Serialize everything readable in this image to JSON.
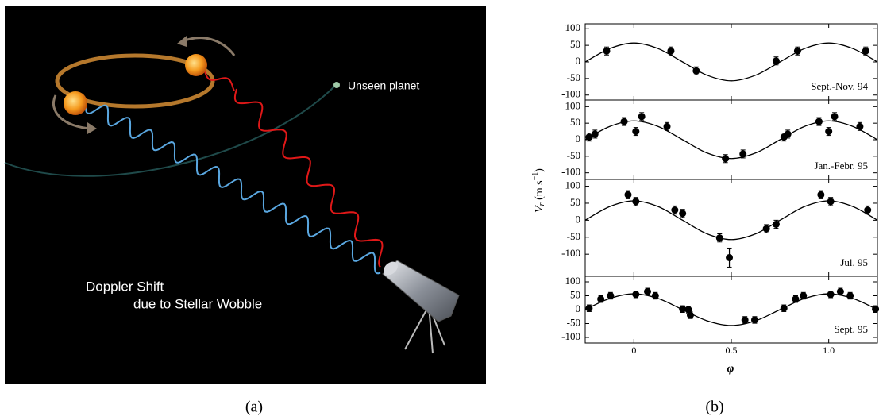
{
  "illustration": {
    "planet_label": "Unseen planet",
    "caption_line1": "Doppler Shift",
    "caption_line2": "due to Stellar Wobble"
  },
  "panel_labels": [
    "(a)",
    "(b)"
  ],
  "figure_b": {
    "y_label_parts": [
      "V",
      "r",
      " (m s",
      "−1",
      ")"
    ],
    "x_label": "φ"
  },
  "chart_data": [
    {
      "type": "scatter",
      "title": "Sept.-Nov. 94",
      "x": [
        -0.14,
        0.19,
        0.32,
        0.73,
        0.84,
        1.19
      ],
      "values": [
        33,
        33,
        -27,
        3,
        33,
        33
      ],
      "errors": [
        12,
        12,
        12,
        12,
        12,
        12
      ],
      "fit": {
        "x": [
          -0.25,
          -0.125,
          0,
          0.125,
          0.25,
          0.375,
          0.5,
          0.625,
          0.75,
          0.875,
          1,
          1.125,
          1.25
        ],
        "values": [
          0,
          40,
          57,
          40,
          0,
          -40,
          -57,
          -40,
          0,
          40,
          57,
          40,
          0
        ]
      },
      "xlim": [
        -0.25,
        1.25
      ],
      "xticks": [
        0,
        0.5,
        {
          "value": 1,
          "label": "1.0"
        }
      ],
      "ylim": [
        -115,
        115
      ],
      "yticks": [
        100,
        50,
        0,
        -50,
        -100
      ]
    },
    {
      "type": "scatter",
      "title": "Jan.-Febr. 95",
      "x": [
        -0.23,
        -0.2,
        -0.05,
        0.01,
        0.04,
        0.17,
        0.47,
        0.56,
        0.77,
        0.79,
        0.95,
        1.0,
        1.03,
        1.16
      ],
      "values": [
        8,
        17,
        55,
        25,
        70,
        40,
        -57,
        -43,
        8,
        17,
        55,
        25,
        70,
        40
      ],
      "errors": [
        12,
        12,
        12,
        12,
        12,
        12,
        12,
        12,
        12,
        12,
        12,
        12,
        12,
        12
      ],
      "fit": {
        "x": [
          -0.25,
          -0.125,
          0,
          0.125,
          0.25,
          0.375,
          0.5,
          0.625,
          0.75,
          0.875,
          1,
          1.125,
          1.25
        ],
        "values": [
          0,
          40,
          57,
          40,
          0,
          -40,
          -57,
          -40,
          0,
          40,
          57,
          40,
          0
        ]
      },
      "xlim": [
        -0.25,
        1.25
      ],
      "xticks": [
        0,
        0.5,
        {
          "value": 1,
          "label": "1.0"
        }
      ],
      "ylim": [
        -120,
        120
      ],
      "yticks": [
        100,
        50,
        0,
        -50,
        -100
      ]
    },
    {
      "type": "scatter",
      "title": "Jul. 95",
      "x": [
        -0.03,
        0.01,
        0.21,
        0.25,
        0.44,
        0.49,
        0.68,
        0.73,
        0.96,
        1.01,
        1.2
      ],
      "values": [
        75,
        55,
        30,
        20,
        -52,
        -110,
        -25,
        -12,
        75,
        55,
        30
      ],
      "errors": [
        12,
        12,
        12,
        12,
        12,
        28,
        12,
        12,
        12,
        12,
        12
      ],
      "fit": {
        "x": [
          -0.25,
          -0.125,
          0,
          0.125,
          0.25,
          0.375,
          0.5,
          0.625,
          0.75,
          0.875,
          1,
          1.125,
          1.25
        ],
        "values": [
          0,
          40,
          57,
          40,
          0,
          -40,
          -57,
          -40,
          0,
          40,
          57,
          40,
          0
        ]
      },
      "xlim": [
        -0.25,
        1.25
      ],
      "xticks": [
        0,
        0.5,
        {
          "value": 1,
          "label": "1.0"
        }
      ],
      "ylim": [
        -165,
        120
      ],
      "yticks": [
        100,
        50,
        0,
        -50,
        -100
      ]
    },
    {
      "type": "scatter",
      "title": "Sept. 95",
      "x": [
        -0.23,
        -0.17,
        -0.12,
        0.01,
        0.07,
        0.11,
        0.25,
        0.28,
        0.29,
        0.57,
        0.62,
        0.77,
        0.83,
        0.87,
        1.01,
        1.06,
        1.11,
        1.24
      ],
      "values": [
        5,
        38,
        50,
        55,
        65,
        50,
        2,
        0,
        -20,
        -37,
        -37,
        5,
        38,
        50,
        55,
        65,
        50,
        2
      ],
      "errors": [
        12,
        12,
        12,
        12,
        12,
        12,
        12,
        12,
        12,
        12,
        12,
        12,
        12,
        12,
        12,
        12,
        12,
        12
      ],
      "fit": {
        "x": [
          -0.25,
          -0.125,
          0,
          0.125,
          0.25,
          0.375,
          0.5,
          0.625,
          0.75,
          0.875,
          1,
          1.125,
          1.25
        ],
        "values": [
          0,
          40,
          57,
          40,
          0,
          -40,
          -57,
          -40,
          0,
          40,
          57,
          40,
          0
        ]
      },
      "xlim": [
        -0.25,
        1.25
      ],
      "xticks": [
        0,
        0.5,
        {
          "value": 1,
          "label": "1.0"
        }
      ],
      "ylim": [
        -120,
        120
      ],
      "yticks": [
        100,
        50,
        0,
        -50,
        -100
      ]
    }
  ]
}
